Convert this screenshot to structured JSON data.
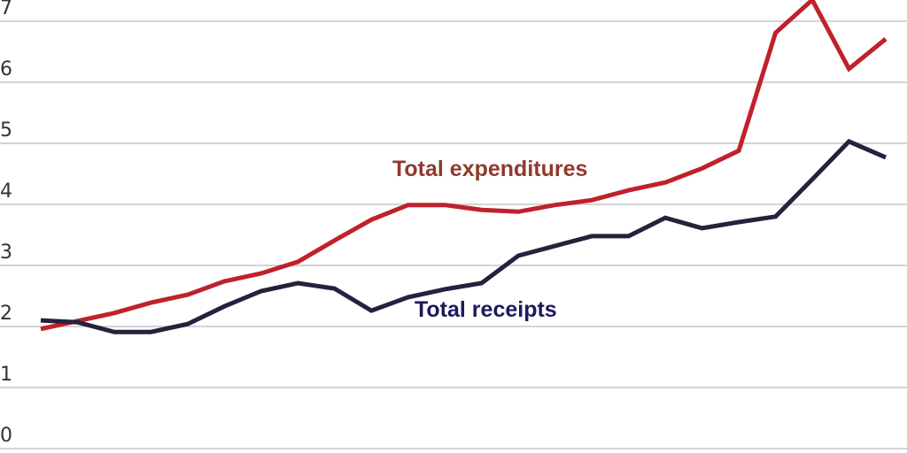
{
  "chart_data": {
    "type": "line",
    "title": "",
    "xlabel": "",
    "ylabel": "",
    "ylim": [
      0,
      7
    ],
    "yticks": [
      "0",
      "1",
      "2",
      "3",
      "4",
      "5",
      "6",
      "7"
    ],
    "grid": true,
    "legend": "inline-labels",
    "series": [
      {
        "name": "Total expenditures",
        "color": "#c0212b",
        "label_color": "#8f3a2c",
        "values": [
          1.96,
          2.09,
          2.22,
          2.39,
          2.52,
          2.74,
          2.87,
          3.06,
          3.41,
          3.75,
          3.99,
          3.99,
          3.91,
          3.88,
          3.99,
          4.07,
          4.23,
          4.36,
          4.59,
          4.88,
          6.81,
          7.35,
          6.22,
          6.71
        ]
      },
      {
        "name": "Total receipts",
        "color": "#25223d",
        "label_color": "#1d1a5c",
        "values": [
          2.1,
          2.07,
          1.91,
          1.91,
          2.04,
          2.33,
          2.58,
          2.71,
          2.62,
          2.26,
          2.48,
          2.61,
          2.71,
          3.16,
          3.32,
          3.48,
          3.48,
          3.78,
          3.61,
          3.71,
          3.8,
          4.41,
          5.03,
          4.77
        ]
      }
    ]
  }
}
